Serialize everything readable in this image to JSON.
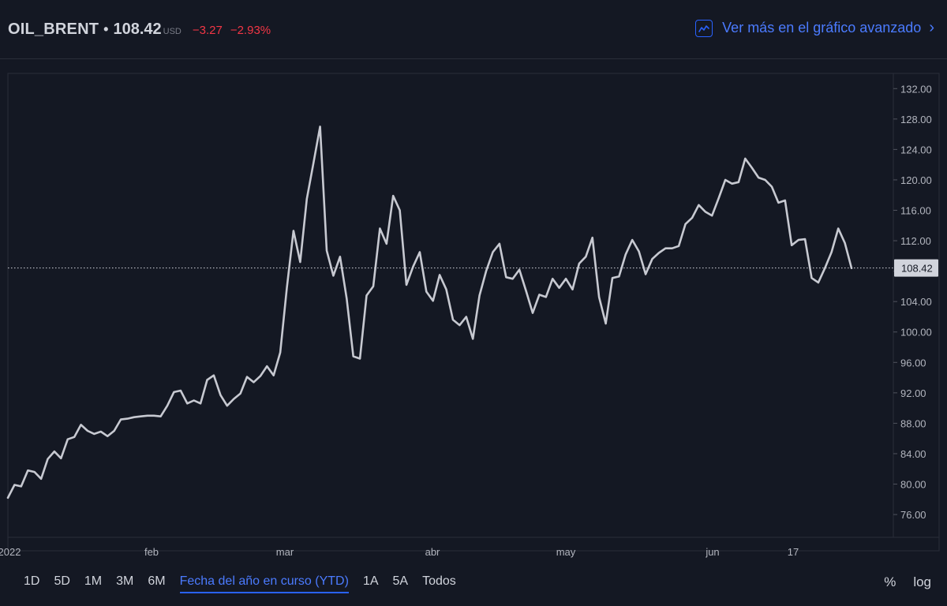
{
  "header": {
    "symbol": "OIL_BRENT",
    "separator": "•",
    "price": "108.42",
    "currency": "USD",
    "change": "−3.27",
    "change_percent": "−2.93%",
    "advanced_link": "Ver más en el gráfico avanzado"
  },
  "colors": {
    "background": "#141823",
    "line": "#c7c9d1",
    "negative": "#f23645",
    "accent": "#2962ff"
  },
  "icons": {
    "advanced_chart": "chart-line-icon",
    "advanced_chevron": "chevron-right-icon"
  },
  "chart_data": {
    "type": "line",
    "ylim": [
      73,
      134
    ],
    "yticks": [
      "132.00",
      "128.00",
      "124.00",
      "120.00",
      "116.00",
      "112.00",
      "108.00",
      "104.00",
      "100.00",
      "96.00",
      "92.00",
      "88.00",
      "84.00",
      "80.00",
      "76.00"
    ],
    "xlabels": [
      "2022",
      "feb",
      "mar",
      "abr",
      "may",
      "jun",
      "17"
    ],
    "last_value": 108.42,
    "last_value_label": "108.42",
    "series": [
      {
        "values": [
          78.2,
          79.9,
          79.7,
          81.8,
          81.6,
          80.7,
          83.3,
          84.3,
          83.4,
          85.9,
          86.2,
          87.8,
          87.0,
          86.6,
          86.9,
          86.3,
          87.0,
          88.5,
          88.6,
          88.8,
          88.9,
          89.0,
          89.0,
          88.9,
          90.3,
          92.1,
          92.3,
          90.6,
          91.0,
          90.6,
          93.7,
          94.3,
          91.7,
          90.3,
          91.2,
          91.9,
          94.1,
          93.4,
          94.2,
          95.5,
          94.3,
          97.3,
          105.8,
          113.3,
          109.2,
          117.5,
          122.2,
          127.0,
          110.7,
          107.4,
          109.9,
          104.4,
          96.8,
          96.5,
          104.8,
          106.0,
          113.6,
          111.6,
          117.9,
          116.0,
          106.2,
          108.6,
          110.5,
          105.3,
          104.1,
          107.5,
          105.6,
          101.6,
          100.9,
          102.0,
          99.1,
          104.8,
          108.0,
          110.5,
          111.6,
          107.2,
          107.0,
          108.2,
          105.4,
          102.5,
          104.9,
          104.6,
          107.0,
          105.8,
          107.0,
          105.6,
          109.0,
          109.9,
          112.4,
          104.6,
          101.1,
          107.1,
          107.3,
          110.2,
          112.1,
          110.6,
          107.6,
          109.6,
          110.4,
          111.0,
          111.0,
          111.3,
          114.2,
          115.0,
          116.7,
          115.8,
          115.3,
          117.6,
          120.0,
          119.5,
          119.7,
          122.8,
          121.6,
          120.3,
          120.0,
          119.1,
          117.0,
          117.3,
          111.4,
          112.1,
          112.2,
          107.1,
          106.5,
          108.4,
          110.5,
          113.6,
          111.7,
          108.4
        ]
      }
    ]
  },
  "ranges": [
    {
      "label": "1D",
      "active": false
    },
    {
      "label": "5D",
      "active": false
    },
    {
      "label": "1M",
      "active": false
    },
    {
      "label": "3M",
      "active": false
    },
    {
      "label": "6M",
      "active": false
    },
    {
      "label": "Fecha del año en curso (YTD)",
      "active": true
    },
    {
      "label": "1A",
      "active": false
    },
    {
      "label": "5A",
      "active": false
    },
    {
      "label": "Todos",
      "active": false
    }
  ],
  "options": {
    "percent_label": "%",
    "log_label": "log"
  }
}
